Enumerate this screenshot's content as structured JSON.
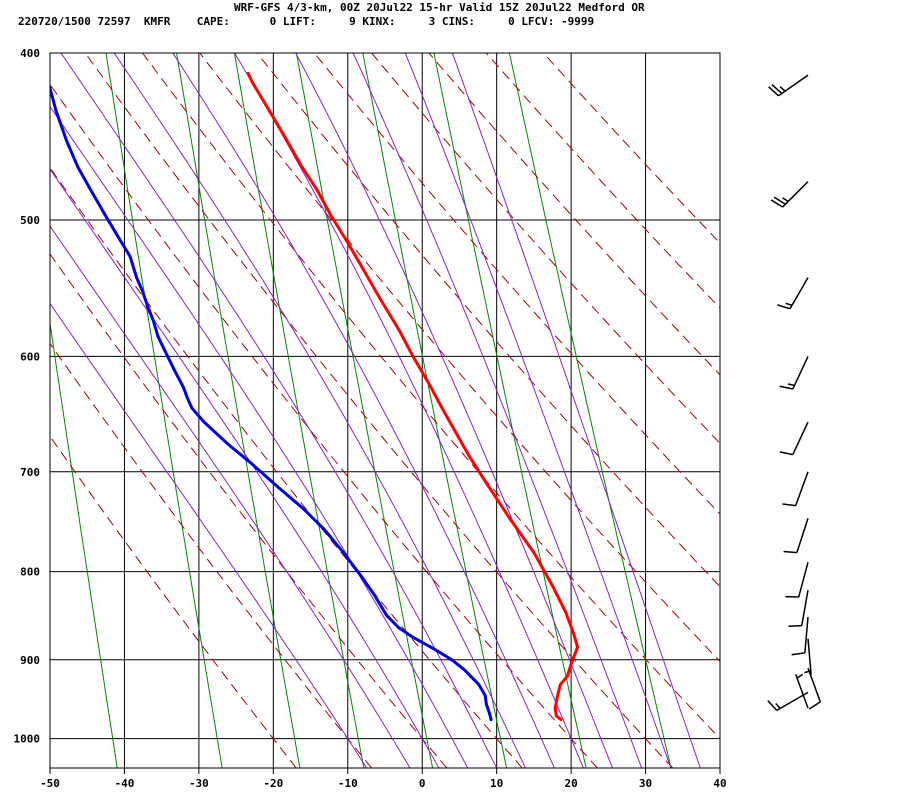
{
  "header": {
    "line1": "WRF-GFS 4/3-km, 00Z 20Jul22 15-hr Valid 15Z 20Jul22 Medford OR",
    "line2": "220720/1500 72597  KMFR    CAPE:      0 LIFT:     9 KINX:     3 CINS:     0 LFCV: -9999"
  },
  "chart_data": {
    "type": "line",
    "title": "WRF-GFS 4/3-km, 00Z 20Jul22 15-hr Valid 15Z 20Jul22 Medford OR",
    "xlabel": "",
    "ylabel": "",
    "xlim": [
      -50,
      40
    ],
    "ylim": [
      1040,
      400
    ],
    "y_scale": "log",
    "x_ticks": [
      -50,
      -40,
      -30,
      -20,
      -10,
      0,
      10,
      20,
      30,
      40
    ],
    "y_ticks": [
      400,
      500,
      600,
      700,
      800,
      900,
      1000
    ],
    "skew_per_decade": 102,
    "grid": true,
    "colors": {
      "temperature": "#ff0000",
      "dewpoint": "#0000dd",
      "dry_adiabat": "#aa0000",
      "moist_adiabat": "#8822cc",
      "mixing_ratio": "#008800",
      "grid": "#000000",
      "barb": "#000000"
    },
    "series": [
      {
        "key": "temperature",
        "points": [
          [
            18.8,
            975
          ],
          [
            18.2,
            970
          ],
          [
            18.1,
            960
          ],
          [
            18.5,
            945
          ],
          [
            19.0,
            930
          ],
          [
            20.0,
            920
          ],
          [
            20.6,
            905
          ],
          [
            21.6,
            885
          ],
          [
            21.2,
            870
          ],
          [
            20.3,
            845
          ],
          [
            18.7,
            815
          ],
          [
            16.5,
            780
          ],
          [
            13.5,
            745
          ],
          [
            10.6,
            710
          ],
          [
            8.6,
            686
          ],
          [
            7.0,
            665
          ],
          [
            5.3,
            643
          ],
          [
            3.8,
            623
          ],
          [
            1.8,
            600
          ],
          [
            0.2,
            580
          ],
          [
            -2.2,
            555
          ],
          [
            -4.1,
            535
          ],
          [
            -6.1,
            515
          ],
          [
            -8.1,
            497
          ],
          [
            -9.8,
            480
          ],
          [
            -11.7,
            465
          ],
          [
            -13.6,
            448
          ],
          [
            -15.8,
            430
          ],
          [
            -17.6,
            416
          ],
          [
            -18.1,
            411
          ]
        ]
      },
      {
        "key": "dewpoint",
        "points": [
          [
            9.4,
            975
          ],
          [
            9.2,
            965
          ],
          [
            8.9,
            955
          ],
          [
            8.8,
            944
          ],
          [
            8.0,
            930
          ],
          [
            6.2,
            912
          ],
          [
            4.6,
            900
          ],
          [
            2.3,
            887
          ],
          [
            -0.5,
            873
          ],
          [
            -2.3,
            862
          ],
          [
            -3.8,
            848
          ],
          [
            -5.3,
            825
          ],
          [
            -6.8,
            806
          ],
          [
            -9.1,
            780
          ],
          [
            -11.5,
            756
          ],
          [
            -14.2,
            735
          ],
          [
            -17.3,
            715
          ],
          [
            -20.8,
            692
          ],
          [
            -23.7,
            675
          ],
          [
            -26.8,
            655
          ],
          [
            -28.3,
            643
          ],
          [
            -28.8,
            635
          ],
          [
            -29.3,
            625
          ],
          [
            -30.3,
            612
          ],
          [
            -31.3,
            598
          ],
          [
            -32.3,
            584
          ],
          [
            -32.8,
            572
          ],
          [
            -33.5,
            560
          ],
          [
            -34.0,
            550
          ],
          [
            -34.7,
            540
          ],
          [
            -35.4,
            525
          ],
          [
            -37.0,
            510
          ],
          [
            -38.6,
            495
          ],
          [
            -40.2,
            480
          ],
          [
            -41.7,
            466
          ],
          [
            -43.0,
            450
          ],
          [
            -44.2,
            432
          ],
          [
            -45.2,
            412
          ]
        ]
      }
    ],
    "dry_adiabats_theta_C": [
      -20,
      -10,
      0,
      10,
      20,
      30,
      40,
      50,
      60,
      70,
      80,
      90,
      100,
      110
    ],
    "moist_adiabats_thetaw_C": [
      -10,
      -4,
      0,
      4,
      8,
      12,
      16,
      20,
      24,
      28,
      32,
      36
    ],
    "mixing_ratio_lines_gkg": [
      0.1,
      0.4,
      1,
      2,
      4,
      8,
      16,
      32
    ],
    "wind_barbs": [
      {
        "p": 412,
        "speed_kt": 25,
        "dir_deg": 235
      },
      {
        "p": 475,
        "speed_kt": 25,
        "dir_deg": 225
      },
      {
        "p": 540,
        "speed_kt": 15,
        "dir_deg": 210
      },
      {
        "p": 600,
        "speed_kt": 15,
        "dir_deg": 205
      },
      {
        "p": 655,
        "speed_kt": 10,
        "dir_deg": 205
      },
      {
        "p": 700,
        "speed_kt": 10,
        "dir_deg": 200
      },
      {
        "p": 745,
        "speed_kt": 10,
        "dir_deg": 198
      },
      {
        "p": 790,
        "speed_kt": 10,
        "dir_deg": 195
      },
      {
        "p": 820,
        "speed_kt": 10,
        "dir_deg": 190
      },
      {
        "p": 850,
        "speed_kt": 10,
        "dir_deg": 185
      },
      {
        "p": 875,
        "speed_kt": 5,
        "dir_deg": 175
      },
      {
        "p": 910,
        "speed_kt": 10,
        "dir_deg": 160
      },
      {
        "p": 940,
        "speed_kt": 15,
        "dir_deg": 240
      },
      {
        "p": 960,
        "speed_kt": 5,
        "dir_deg": 340
      }
    ]
  }
}
